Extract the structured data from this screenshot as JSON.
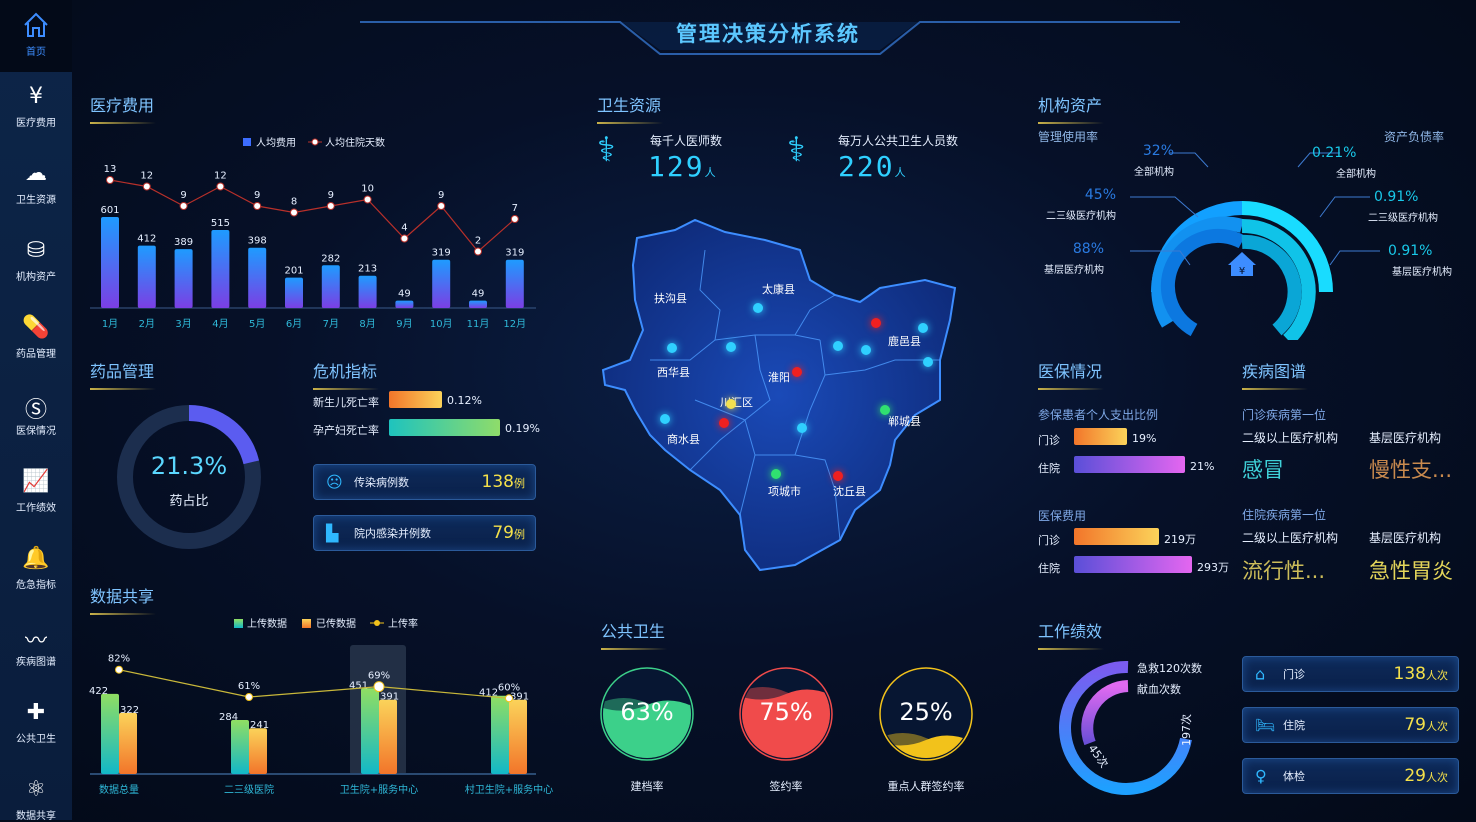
{
  "title": "管理决策分析系统",
  "sidebar": {
    "home": "首页",
    "items": [
      {
        "label": "医疗费用",
        "icon": "house-yen-icon"
      },
      {
        "label": "卫生资源",
        "icon": "cloud-icon"
      },
      {
        "label": "机构资产",
        "icon": "coin-stack-icon"
      },
      {
        "label": "药品管理",
        "icon": "capsule-icon"
      },
      {
        "label": "医保情况",
        "icon": "si-logo-icon"
      },
      {
        "label": "工作绩效",
        "icon": "line-chart-icon"
      },
      {
        "label": "危急指标",
        "icon": "alarm-bell-icon"
      },
      {
        "label": "疾病图谱",
        "icon": "trend-chart-icon"
      },
      {
        "label": "公共卫生",
        "icon": "medical-kit-icon"
      },
      {
        "label": "数据共享",
        "icon": "share-icon"
      }
    ]
  },
  "medical_cost": {
    "title": "医疗费用",
    "chart_data": {
      "type": "bar",
      "categories": [
        "1月",
        "2月",
        "3月",
        "4月",
        "5月",
        "6月",
        "7月",
        "8月",
        "9月",
        "10月",
        "11月",
        "12月"
      ],
      "series": [
        {
          "name": "人均费用",
          "type": "bar",
          "values": [
            601,
            412,
            389,
            515,
            398,
            201,
            282,
            213,
            49,
            319,
            49,
            319
          ]
        },
        {
          "name": "人均住院天数",
          "type": "line",
          "values": [
            13,
            12,
            9,
            12,
            9,
            8,
            9,
            10,
            4,
            9,
            2,
            7
          ]
        }
      ],
      "legend": "top",
      "colors": [
        "#1e9bff",
        "#7b3fe4",
        "#b8302a"
      ]
    }
  },
  "drug": {
    "title": "药品管理",
    "value": "21.3%",
    "label": "药占比",
    "fraction": 0.213
  },
  "crisis": {
    "title": "危机指标",
    "rates": [
      {
        "label": "新生儿死亡率",
        "value": "0.12%"
      },
      {
        "label": "孕产妇死亡率",
        "value": "0.19%"
      }
    ],
    "cards": [
      {
        "label": "传染病例数",
        "value": "138",
        "unit": "例"
      },
      {
        "label": "院内感染并例数",
        "value": "79",
        "unit": "例"
      }
    ]
  },
  "data_share": {
    "title": "数据共享",
    "chart_data": {
      "type": "bar",
      "categories": [
        "数据总量",
        "二三级医院",
        "卫生院+服务中心",
        "村卫生院+服务中心"
      ],
      "series": [
        {
          "name": "上传数据",
          "type": "bar",
          "values": [
            422,
            284,
            451,
            412
          ]
        },
        {
          "name": "已传数据",
          "type": "bar",
          "values": [
            322,
            241,
            391,
            391
          ]
        },
        {
          "name": "上传率",
          "type": "line",
          "values": [
            82,
            61,
            69,
            60
          ],
          "labels": [
            "82%",
            "61%",
            "69%",
            "60%"
          ]
        }
      ],
      "highlighted": "卫生院+服务中心",
      "legend": "top"
    }
  },
  "resources": {
    "title": "卫生资源",
    "stats": [
      {
        "label": "每千人医师数",
        "value": "129",
        "unit": "人"
      },
      {
        "label": "每万人公共卫生人员数",
        "value": "220",
        "unit": "人"
      }
    ],
    "districts": [
      "扶沟县",
      "太康县",
      "西华县",
      "淮阳",
      "川汇区",
      "鹿邑县",
      "商水县",
      "郸城县",
      "项城市",
      "沈丘县"
    ]
  },
  "public_health": {
    "title": "公共卫生",
    "gauges": [
      {
        "value": "63%",
        "label": "建档率",
        "fraction": 0.63,
        "color": "#3cd08a"
      },
      {
        "value": "75%",
        "label": "签约率",
        "fraction": 0.75,
        "color": "#f04b4b"
      },
      {
        "value": "25%",
        "label": "重点人群签约率",
        "fraction": 0.25,
        "color": "#f2c21b"
      }
    ]
  },
  "assets": {
    "title": "机构资产",
    "left_title": "管理使用率",
    "right_title": "资产负债率",
    "left": [
      {
        "value": "32%",
        "label": "全部机构"
      },
      {
        "value": "45%",
        "label": "二三级医疗机构"
      },
      {
        "value": "88%",
        "label": "基层医疗机构"
      }
    ],
    "right": [
      {
        "value": "0.21%",
        "label": "全部机构"
      },
      {
        "value": "0.91%",
        "label": "二三级医疗机构"
      },
      {
        "value": "0.91%",
        "label": "基层医疗机构"
      }
    ]
  },
  "insurance": {
    "title": "医保情况",
    "ratio_title": "参保患者个人支出比例",
    "ratio": [
      {
        "label": "门诊",
        "value": "19%"
      },
      {
        "label": "住院",
        "value": "21%"
      }
    ],
    "cost_title": "医保费用",
    "cost": [
      {
        "label": "门诊",
        "value": "219万"
      },
      {
        "label": "住院",
        "value": "293万"
      }
    ]
  },
  "disease": {
    "title": "疾病图谱",
    "outpatient_title": "门诊疾病第一位",
    "inpatient_title": "住院疾病第一位",
    "col1": "二级以上医疗机构",
    "col2": "基层医疗机构",
    "outpatient": [
      "感冒",
      "慢性支..."
    ],
    "inpatient": [
      "流行性...",
      "急性胃炎"
    ]
  },
  "performance": {
    "title": "工作绩效",
    "legend": [
      "急救120次数",
      "献血次数"
    ],
    "ring_values": [
      "197次",
      "45次"
    ],
    "cards": [
      {
        "label": "门诊",
        "value": "138",
        "unit": "人次"
      },
      {
        "label": "住院",
        "value": "79",
        "unit": "人次"
      },
      {
        "label": "体检",
        "value": "29",
        "unit": "人次"
      }
    ]
  }
}
